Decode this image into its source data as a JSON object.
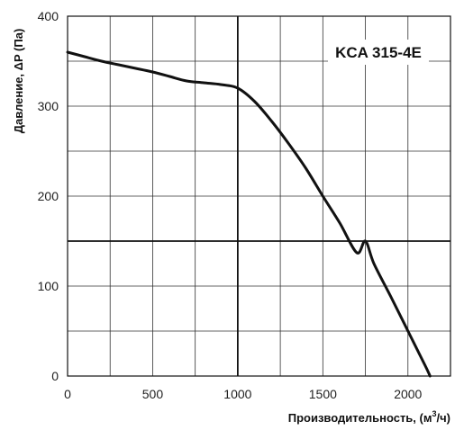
{
  "chart_data": {
    "type": "line",
    "title": "KCA 315-4E",
    "xlabel": "Производительность, (м",
    "xlabel_sup": "3",
    "xlabel_suffix": "/ч)",
    "ylabel": "Давление, ΔP (Па)",
    "xlim": [
      0,
      2200
    ],
    "ylim": [
      0,
      400
    ],
    "x_ticks": [
      0,
      500,
      1000,
      1500,
      2000
    ],
    "y_ticks": [
      0,
      100,
      200,
      300,
      400
    ],
    "x_grid": [
      0,
      250,
      500,
      750,
      1000,
      1250,
      1500,
      1750,
      2000,
      2250
    ],
    "y_grid": [
      0,
      50,
      100,
      150,
      200,
      250,
      300,
      350,
      400
    ],
    "grid": true,
    "reference_lines": [
      {
        "axis": "x",
        "value": 1000
      },
      {
        "axis": "y",
        "value": 150
      }
    ],
    "series": [
      {
        "x": [
          0,
          100,
          200,
          300,
          400,
          500,
          600,
          700,
          800,
          900,
          1000,
          1100,
          1200,
          1300,
          1400,
          1500,
          1600,
          1700,
          1750,
          1800,
          1900,
          2000,
          2100,
          2130
        ],
        "values": [
          360,
          355,
          350,
          346,
          342,
          338,
          333,
          328,
          326,
          324,
          320,
          305,
          283,
          258,
          231,
          200,
          170,
          137,
          150,
          125,
          88,
          50,
          12,
          0
        ]
      }
    ],
    "colors": {
      "curve": "#111111",
      "grid": "#333333",
      "reference": "#111111",
      "frame": "#111111"
    }
  }
}
